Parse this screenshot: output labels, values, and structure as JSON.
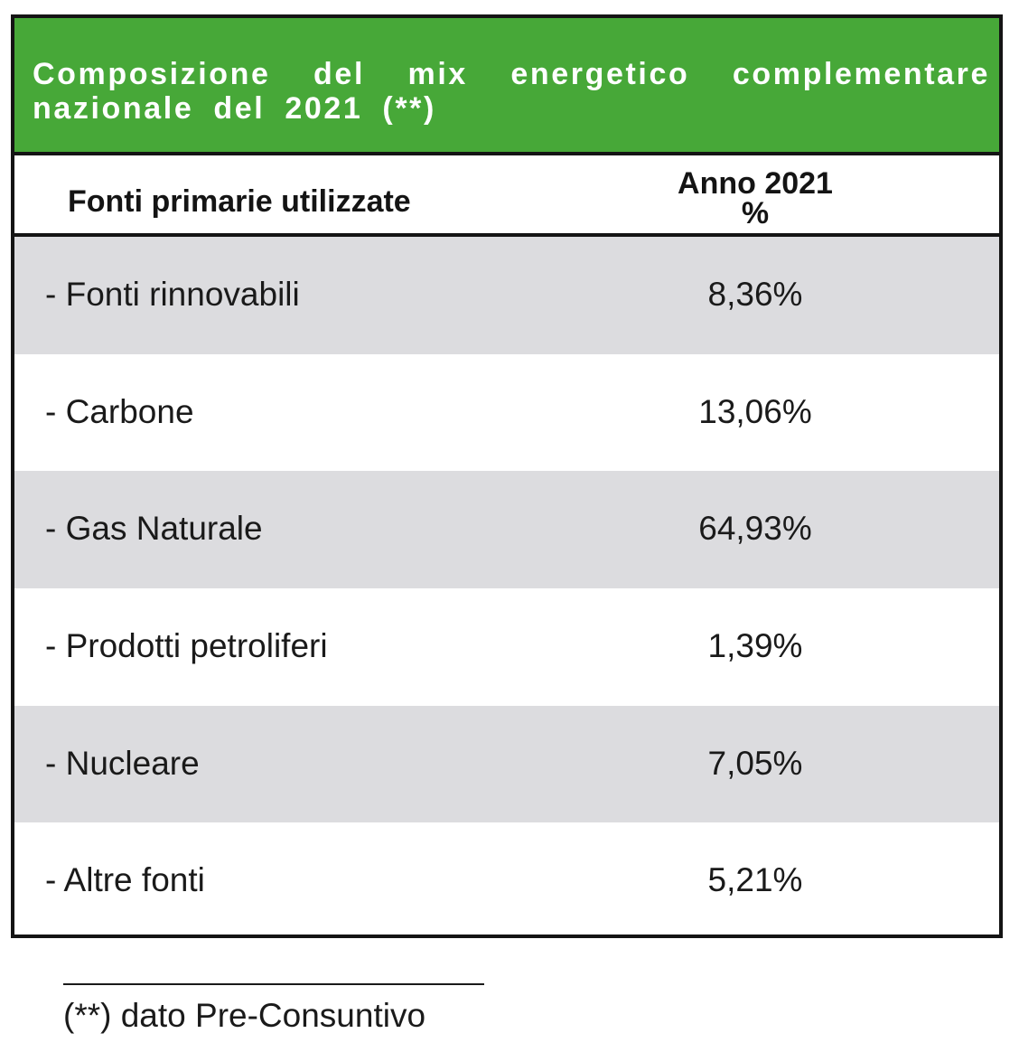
{
  "table": {
    "title": "Composizione del mix energetico complementare nazionale del 2021 (**)",
    "header": {
      "label_column": "Fonti primarie utilizzate",
      "value_column_line1": "Anno 2021",
      "value_column_line2": "%"
    },
    "rows": [
      {
        "label": "- Fonti rinnovabili",
        "value": "8,36%"
      },
      {
        "label": "- Carbone",
        "value": "13,06%"
      },
      {
        "label": "- Gas Naturale",
        "value": "64,93%"
      },
      {
        "label": "- Prodotti petroliferi",
        "value": "1,39%"
      },
      {
        "label": "- Nucleare",
        "value": "7,05%"
      },
      {
        "label": "- Altre fonti",
        "value": "5,21%"
      }
    ]
  },
  "footnote": {
    "text": "(**) dato Pre-Consuntivo"
  },
  "colors": {
    "title_background": "#47a838",
    "title_text": "#ffffff",
    "shaded_row": "#dcdcdf",
    "border": "#141414"
  }
}
